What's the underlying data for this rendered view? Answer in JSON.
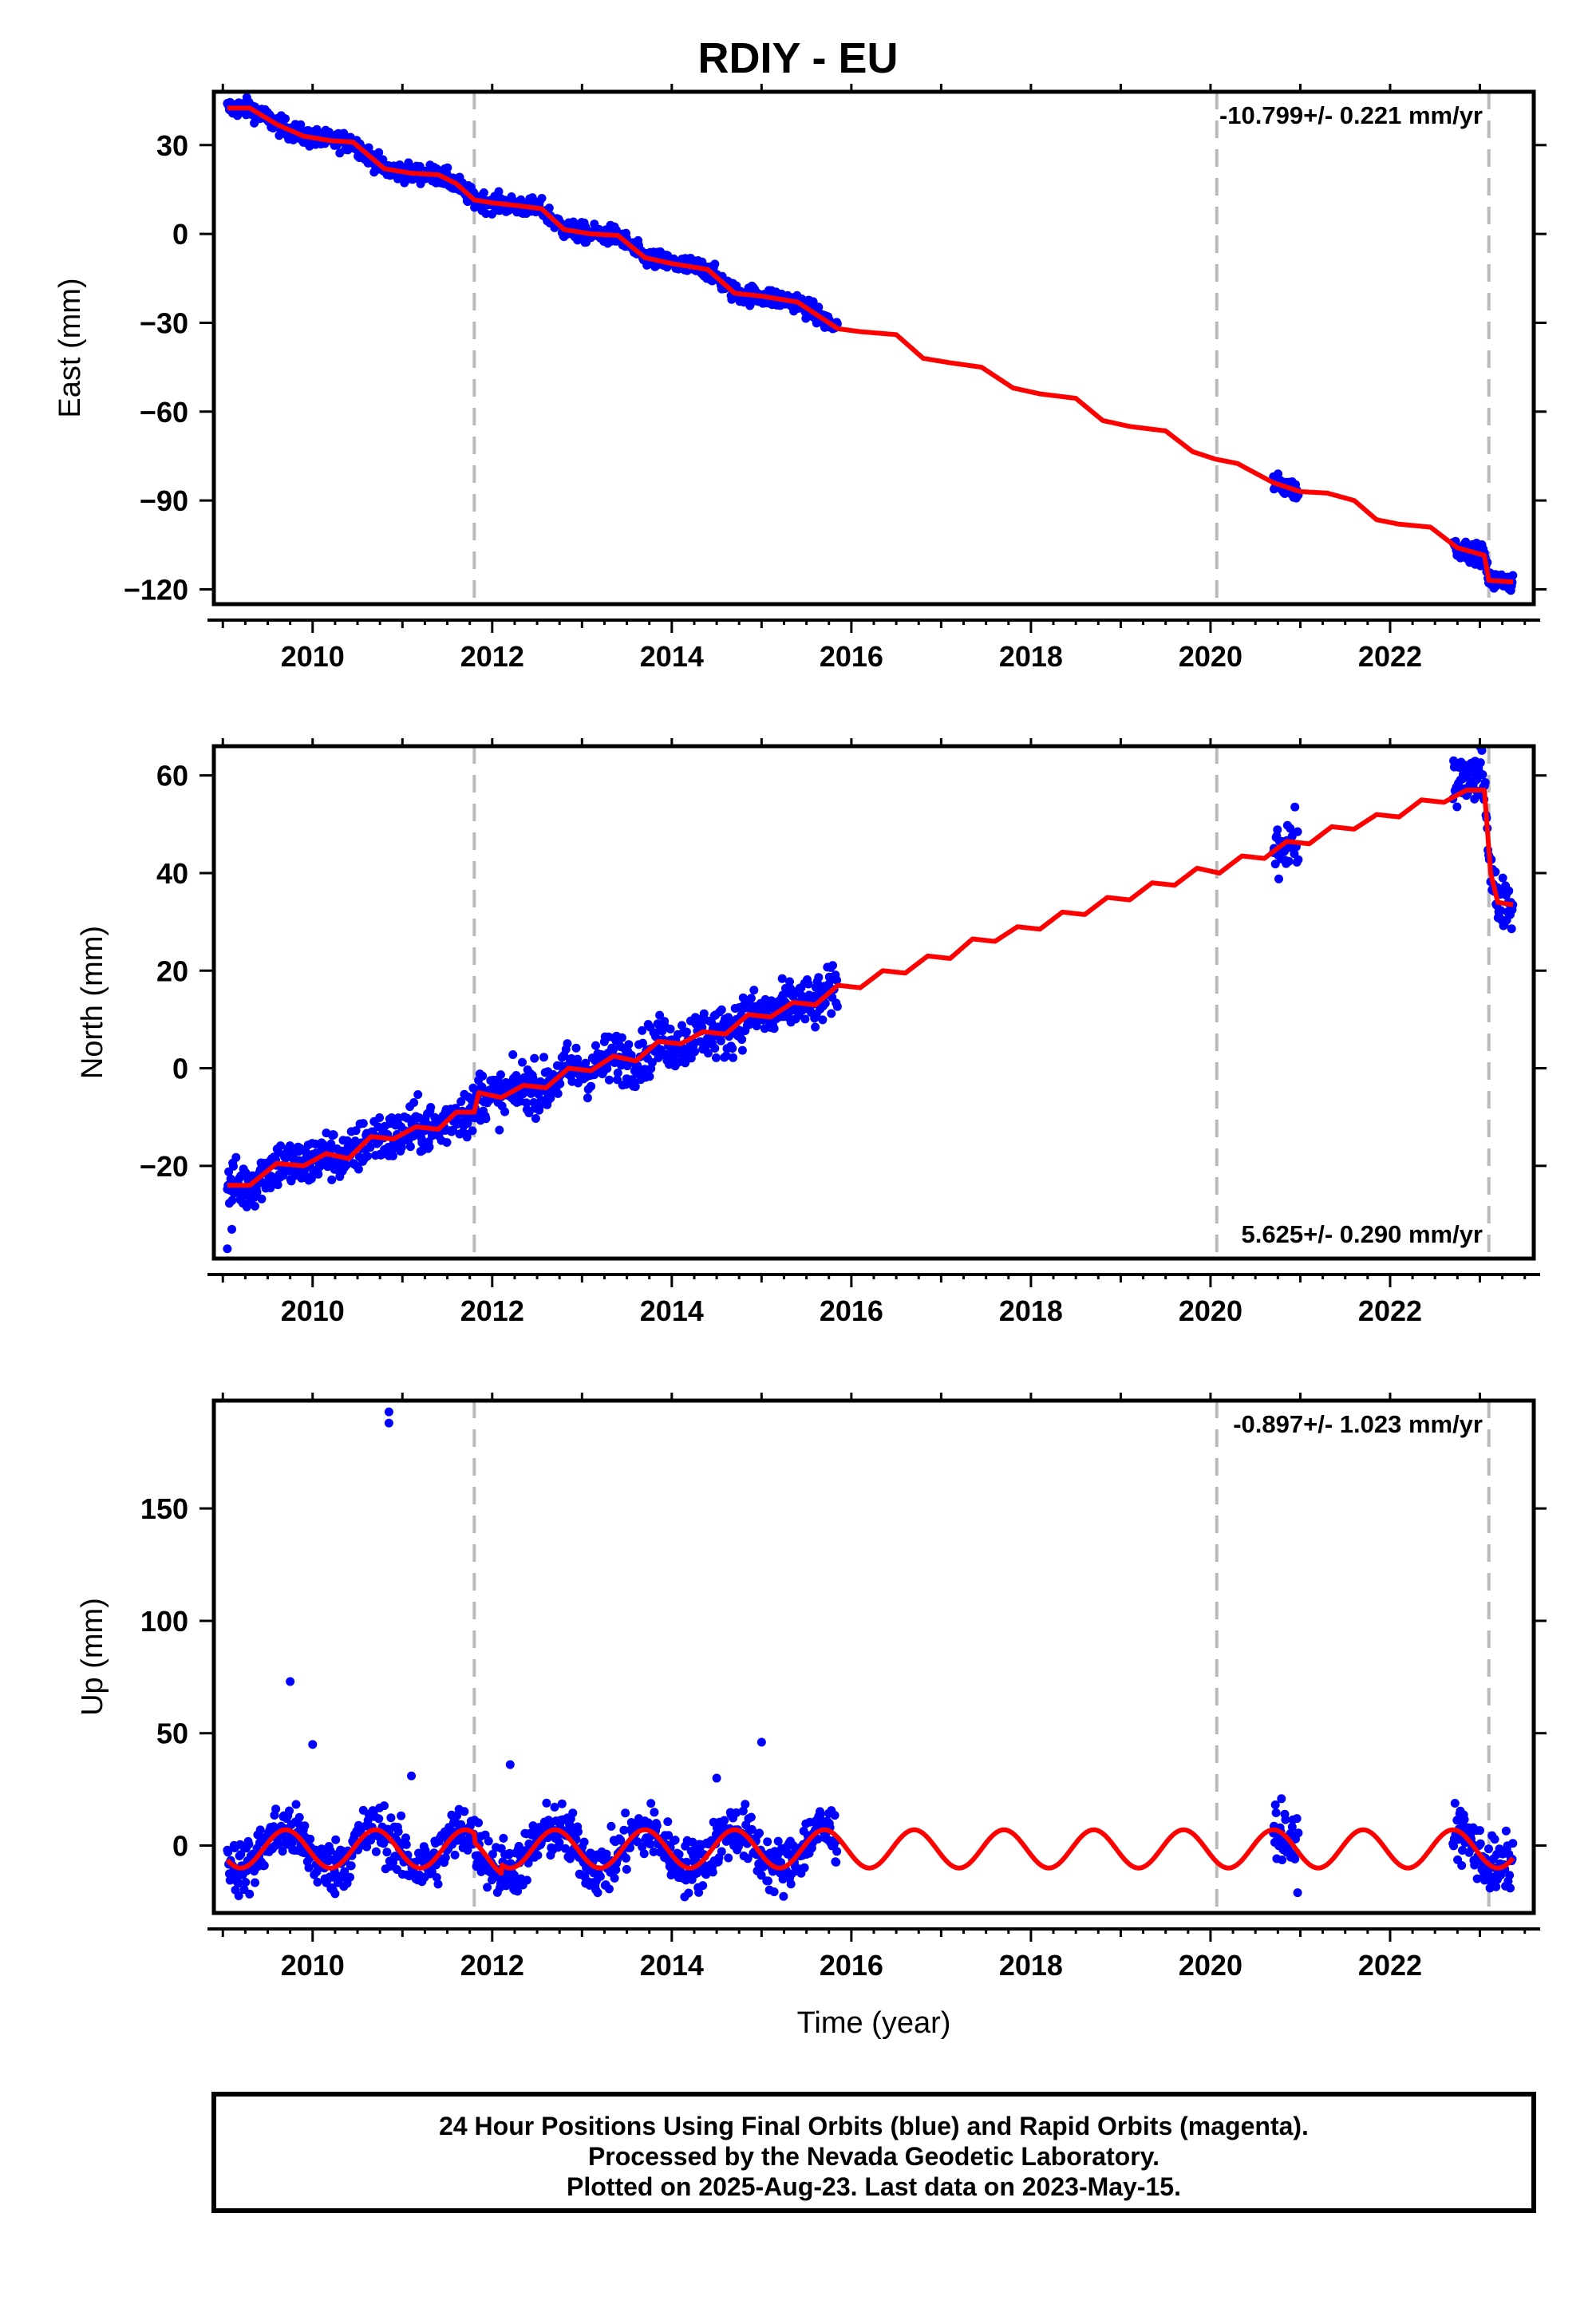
{
  "title": "RDIY - EU",
  "footer": {
    "line1": "24 Hour Positions Using Final Orbits (blue) and Rapid Orbits (magenta).",
    "line2": "Processed by the Nevada Geodetic Laboratory.",
    "line3": "Plotted on 2025-Aug-23. Last data on 2023-May-15."
  },
  "colors": {
    "data_points": "#0000ff",
    "model_line": "#ff0000",
    "event_lines": "#bbbbbb",
    "axes": "#000000"
  },
  "chart_data": [
    {
      "type": "scatter",
      "ylabel": "East (mm)",
      "xlabel": "",
      "rate": "-10.799+/- 0.221 mm/yr",
      "rate_position": "top-right",
      "xlim": [
        2008.9,
        2023.6
      ],
      "ylim": [
        -125,
        48
      ],
      "x_ticks": [
        2010,
        2012,
        2014,
        2016,
        2018,
        2020,
        2022
      ],
      "y_ticks": [
        30,
        0,
        -30,
        -60,
        -90,
        -120
      ],
      "y_tick_labels": [
        "30",
        "0",
        "−30",
        "−60",
        "−90",
        "−120"
      ],
      "event_lines_x": [
        2011.8,
        2020.07,
        2023.1
      ],
      "data_segments": [
        [
          2009.05,
          2015.85
        ],
        [
          2020.7,
          2020.98
        ],
        [
          2022.7,
          2023.37
        ]
      ],
      "model_line": [
        [
          2009.05,
          42.5
        ],
        [
          2009.3,
          42.5
        ],
        [
          2009.6,
          37
        ],
        [
          2009.9,
          33
        ],
        [
          2010.2,
          31.5
        ],
        [
          2010.45,
          31
        ],
        [
          2010.8,
          22
        ],
        [
          2011.1,
          20.5
        ],
        [
          2011.4,
          20
        ],
        [
          2011.6,
          17
        ],
        [
          2011.8,
          11.5
        ],
        [
          2012.0,
          10.5
        ],
        [
          2012.3,
          9.5
        ],
        [
          2012.55,
          8.5
        ],
        [
          2012.8,
          1.5
        ],
        [
          2013.1,
          0
        ],
        [
          2013.4,
          -0.5
        ],
        [
          2013.7,
          -8
        ],
        [
          2014.0,
          -10
        ],
        [
          2014.4,
          -12
        ],
        [
          2014.7,
          -20
        ],
        [
          2015.0,
          -21
        ],
        [
          2015.4,
          -23
        ],
        [
          2015.85,
          -32
        ],
        [
          2016.1,
          -33
        ],
        [
          2016.5,
          -34
        ],
        [
          2016.8,
          -42
        ],
        [
          2017.1,
          -43.5
        ],
        [
          2017.45,
          -45
        ],
        [
          2017.8,
          -52
        ],
        [
          2018.1,
          -54
        ],
        [
          2018.5,
          -55.5
        ],
        [
          2018.8,
          -63
        ],
        [
          2019.1,
          -65
        ],
        [
          2019.5,
          -66.5
        ],
        [
          2019.8,
          -73.5
        ],
        [
          2020.05,
          -76
        ],
        [
          2020.3,
          -77.5
        ],
        [
          2020.7,
          -84
        ],
        [
          2021.0,
          -87
        ],
        [
          2021.3,
          -87.5
        ],
        [
          2021.6,
          -90
        ],
        [
          2021.85,
          -96.5
        ],
        [
          2022.1,
          -98
        ],
        [
          2022.45,
          -99
        ],
        [
          2022.75,
          -106
        ],
        [
          2023.05,
          -108.5
        ],
        [
          2023.1,
          -117
        ],
        [
          2023.37,
          -117.5
        ]
      ],
      "outliers": []
    },
    {
      "type": "scatter",
      "ylabel": "North (mm)",
      "xlabel": "",
      "rate": "5.625+/- 0.290 mm/yr",
      "rate_position": "bottom-right",
      "xlim": [
        2008.9,
        2023.6
      ],
      "ylim": [
        -39,
        66
      ],
      "x_ticks": [
        2010,
        2012,
        2014,
        2016,
        2018,
        2020,
        2022
      ],
      "y_ticks": [
        60,
        40,
        20,
        0,
        -20
      ],
      "y_tick_labels": [
        "60",
        "40",
        "20",
        "0",
        "−20"
      ],
      "event_lines_x": [
        2011.8,
        2020.07,
        2023.1
      ],
      "data_segments": [
        [
          2009.05,
          2015.85
        ],
        [
          2020.7,
          2020.98
        ],
        [
          2022.7,
          2023.37
        ]
      ],
      "model_line": [
        [
          2009.05,
          -24
        ],
        [
          2009.3,
          -24
        ],
        [
          2009.6,
          -19.5
        ],
        [
          2009.9,
          -20
        ],
        [
          2010.15,
          -17.5
        ],
        [
          2010.4,
          -18.5
        ],
        [
          2010.65,
          -14
        ],
        [
          2010.9,
          -14.5
        ],
        [
          2011.15,
          -12
        ],
        [
          2011.4,
          -12.5
        ],
        [
          2011.6,
          -9
        ],
        [
          2011.8,
          -9
        ],
        [
          2011.85,
          -5
        ],
        [
          2012.1,
          -6
        ],
        [
          2012.35,
          -3.5
        ],
        [
          2012.6,
          -4
        ],
        [
          2012.85,
          0
        ],
        [
          2013.1,
          -0.5
        ],
        [
          2013.35,
          2.5
        ],
        [
          2013.6,
          1.5
        ],
        [
          2013.85,
          5.5
        ],
        [
          2014.1,
          5
        ],
        [
          2014.35,
          7.5
        ],
        [
          2014.6,
          7
        ],
        [
          2014.85,
          11
        ],
        [
          2015.1,
          10.5
        ],
        [
          2015.35,
          13.5
        ],
        [
          2015.6,
          13
        ],
        [
          2015.85,
          17
        ],
        [
          2016.1,
          16.5
        ],
        [
          2016.35,
          20
        ],
        [
          2016.6,
          19.5
        ],
        [
          2016.85,
          23
        ],
        [
          2017.1,
          22.5
        ],
        [
          2017.35,
          26.5
        ],
        [
          2017.6,
          26
        ],
        [
          2017.85,
          29
        ],
        [
          2018.1,
          28.5
        ],
        [
          2018.35,
          32
        ],
        [
          2018.6,
          31.5
        ],
        [
          2018.85,
          35
        ],
        [
          2019.1,
          34.5
        ],
        [
          2019.35,
          38
        ],
        [
          2019.6,
          37.5
        ],
        [
          2019.85,
          41
        ],
        [
          2020.1,
          40
        ],
        [
          2020.35,
          43.5
        ],
        [
          2020.6,
          43
        ],
        [
          2020.85,
          46.5
        ],
        [
          2021.1,
          46
        ],
        [
          2021.35,
          49.5
        ],
        [
          2021.6,
          49
        ],
        [
          2021.85,
          52
        ],
        [
          2022.1,
          51.5
        ],
        [
          2022.35,
          55
        ],
        [
          2022.6,
          54.5
        ],
        [
          2022.85,
          57
        ],
        [
          2023.05,
          57
        ],
        [
          2023.12,
          40
        ],
        [
          2023.2,
          34
        ],
        [
          2023.37,
          33.5
        ]
      ],
      "outliers": [
        [
          2009.05,
          -37
        ],
        [
          2009.1,
          -33
        ]
      ]
    },
    {
      "type": "scatter",
      "ylabel": "Up (mm)",
      "xlabel": "Time (year)",
      "rate": "-0.897+/- 1.023 mm/yr",
      "rate_position": "top-right",
      "xlim": [
        2008.9,
        2023.6
      ],
      "ylim": [
        -30,
        198
      ],
      "x_ticks": [
        2010,
        2012,
        2014,
        2016,
        2018,
        2020,
        2022
      ],
      "y_ticks": [
        150,
        100,
        50,
        0
      ],
      "y_tick_labels": [
        "150",
        "100",
        "50",
        "0"
      ],
      "event_lines_x": [
        2011.8,
        2020.07,
        2023.1
      ],
      "data_segments": [
        [
          2009.05,
          2015.85
        ],
        [
          2020.7,
          2020.98
        ],
        [
          2022.7,
          2023.37
        ]
      ],
      "seasonal_amplitude": 8.5,
      "outliers": [
        [
          2010.85,
          193
        ],
        [
          2010.85,
          188
        ],
        [
          2009.75,
          73
        ],
        [
          2010.0,
          45
        ],
        [
          2015.0,
          46
        ],
        [
          2011.1,
          31
        ],
        [
          2012.2,
          36
        ],
        [
          2014.5,
          30
        ]
      ]
    }
  ]
}
